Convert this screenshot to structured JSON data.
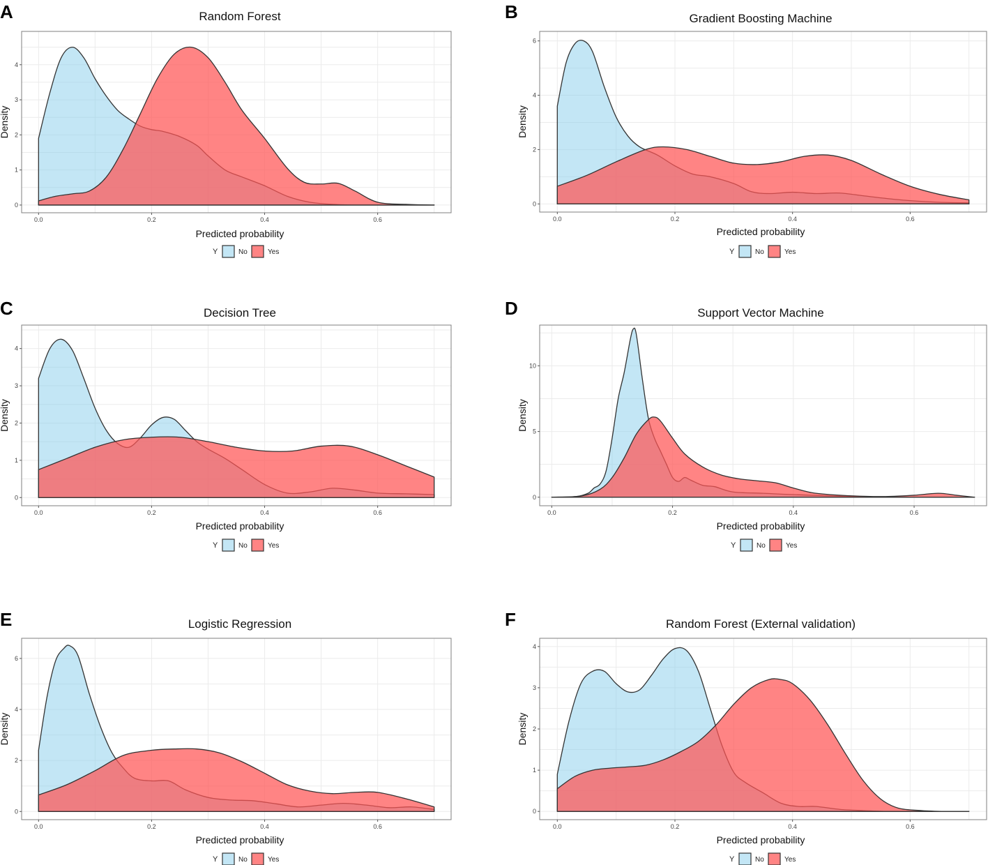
{
  "chart_data": [
    {
      "type": "area",
      "panel_label": "A",
      "title": "Random Forest",
      "xlabel": "Predicted probability",
      "ylabel": "Density",
      "xlim": [
        -0.03,
        0.73
      ],
      "ylim": [
        -0.22,
        4.95
      ],
      "xticks": [
        0.0,
        0.2,
        0.4,
        0.6
      ],
      "xtick_labels": [
        "0.0",
        "0.2",
        "0.4",
        "0.6"
      ],
      "yticks": [
        0,
        1,
        2,
        3,
        4
      ],
      "ytick_labels": [
        "0",
        "1",
        "2",
        "3",
        "4"
      ],
      "legend": {
        "title": "Y",
        "position": "bottom",
        "entries": [
          "No",
          "Yes"
        ]
      },
      "series": [
        {
          "name": "No",
          "color": "#87CEEB",
          "x": [
            0.0,
            0.02,
            0.04,
            0.06,
            0.08,
            0.1,
            0.12,
            0.14,
            0.16,
            0.18,
            0.2,
            0.22,
            0.25,
            0.28,
            0.3,
            0.33,
            0.36,
            0.4,
            0.44,
            0.48,
            0.52,
            0.56,
            0.6,
            0.65,
            0.7
          ],
          "y": [
            1.9,
            3.2,
            4.2,
            4.5,
            4.2,
            3.6,
            3.1,
            2.7,
            2.45,
            2.25,
            2.15,
            2.1,
            1.95,
            1.7,
            1.4,
            1.0,
            0.8,
            0.55,
            0.25,
            0.08,
            0.02,
            0.0,
            0.0,
            0.0,
            0.0
          ]
        },
        {
          "name": "Yes",
          "color": "#FF5555",
          "x": [
            0.0,
            0.03,
            0.06,
            0.09,
            0.12,
            0.15,
            0.18,
            0.21,
            0.24,
            0.27,
            0.3,
            0.33,
            0.36,
            0.4,
            0.44,
            0.47,
            0.5,
            0.53,
            0.56,
            0.6,
            0.65,
            0.7
          ],
          "y": [
            0.12,
            0.25,
            0.32,
            0.4,
            0.8,
            1.6,
            2.6,
            3.6,
            4.3,
            4.5,
            4.2,
            3.5,
            2.7,
            1.9,
            1.05,
            0.65,
            0.6,
            0.62,
            0.4,
            0.08,
            0.02,
            0.0
          ]
        }
      ]
    },
    {
      "type": "area",
      "panel_label": "B",
      "title": "Gradient Boosting Machine",
      "xlabel": "Predicted probability",
      "ylabel": "Density",
      "xlim": [
        -0.03,
        0.73
      ],
      "ylim": [
        -0.3,
        6.35
      ],
      "xticks": [
        0.0,
        0.2,
        0.4,
        0.6
      ],
      "xtick_labels": [
        "0.0",
        "0.2",
        "0.4",
        "0.6"
      ],
      "yticks": [
        0,
        2,
        4,
        6
      ],
      "ytick_labels": [
        "0",
        "2",
        "4",
        "6"
      ],
      "legend": {
        "title": "Y",
        "position": "bottom",
        "entries": [
          "No",
          "Yes"
        ]
      },
      "series": [
        {
          "name": "No",
          "color": "#87CEEB",
          "x": [
            0.0,
            0.015,
            0.03,
            0.045,
            0.06,
            0.08,
            0.1,
            0.12,
            0.14,
            0.17,
            0.2,
            0.23,
            0.26,
            0.3,
            0.33,
            0.36,
            0.4,
            0.44,
            0.48,
            0.52,
            0.56,
            0.6,
            0.65,
            0.7
          ],
          "y": [
            3.6,
            5.2,
            5.9,
            6.0,
            5.6,
            4.3,
            3.2,
            2.5,
            2.1,
            1.8,
            1.4,
            1.1,
            1.0,
            0.75,
            0.45,
            0.38,
            0.43,
            0.38,
            0.4,
            0.3,
            0.2,
            0.12,
            0.06,
            0.04
          ]
        },
        {
          "name": "Yes",
          "color": "#FF5555",
          "x": [
            0.0,
            0.05,
            0.1,
            0.15,
            0.18,
            0.22,
            0.26,
            0.3,
            0.34,
            0.38,
            0.42,
            0.46,
            0.5,
            0.55,
            0.6,
            0.65,
            0.7
          ],
          "y": [
            0.65,
            1.05,
            1.55,
            2.0,
            2.1,
            2.0,
            1.75,
            1.5,
            1.45,
            1.55,
            1.75,
            1.8,
            1.6,
            1.1,
            0.65,
            0.35,
            0.15
          ]
        }
      ]
    },
    {
      "type": "area",
      "panel_label": "C",
      "title": "Decision Tree",
      "xlabel": "Predicted probability",
      "ylabel": "Density",
      "xlim": [
        -0.03,
        0.73
      ],
      "ylim": [
        -0.22,
        4.63
      ],
      "xticks": [
        0.0,
        0.2,
        0.4,
        0.6
      ],
      "xtick_labels": [
        "0.0",
        "0.2",
        "0.4",
        "0.6"
      ],
      "yticks": [
        0,
        1,
        2,
        3,
        4
      ],
      "ytick_labels": [
        "0",
        "1",
        "2",
        "3",
        "4"
      ],
      "legend": {
        "title": "Y",
        "position": "bottom",
        "entries": [
          "No",
          "Yes"
        ]
      },
      "series": [
        {
          "name": "No",
          "color": "#87CEEB",
          "x": [
            0.0,
            0.02,
            0.04,
            0.06,
            0.08,
            0.1,
            0.12,
            0.14,
            0.16,
            0.18,
            0.2,
            0.22,
            0.24,
            0.26,
            0.28,
            0.3,
            0.33,
            0.36,
            0.4,
            0.44,
            0.48,
            0.52,
            0.56,
            0.6,
            0.65,
            0.7
          ],
          "y": [
            3.2,
            4.0,
            4.25,
            3.95,
            3.2,
            2.4,
            1.8,
            1.45,
            1.35,
            1.6,
            1.95,
            2.15,
            2.1,
            1.8,
            1.5,
            1.3,
            1.05,
            0.75,
            0.35,
            0.12,
            0.15,
            0.25,
            0.2,
            0.12,
            0.1,
            0.08
          ]
        },
        {
          "name": "Yes",
          "color": "#FF5555",
          "x": [
            0.0,
            0.05,
            0.1,
            0.15,
            0.2,
            0.25,
            0.3,
            0.35,
            0.4,
            0.45,
            0.5,
            0.55,
            0.6,
            0.65,
            0.7
          ],
          "y": [
            0.75,
            1.05,
            1.35,
            1.55,
            1.62,
            1.62,
            1.5,
            1.35,
            1.25,
            1.25,
            1.38,
            1.38,
            1.15,
            0.85,
            0.55
          ]
        }
      ]
    },
    {
      "type": "area",
      "panel_label": "D",
      "title": "Support Vector Machine",
      "xlabel": "Predicted probability",
      "ylabel": "Density",
      "xlim": [
        -0.02,
        0.72
      ],
      "ylim": [
        -0.65,
        13.1
      ],
      "xticks": [
        0.0,
        0.2,
        0.4,
        0.6
      ],
      "xtick_labels": [
        "0.0",
        "0.2",
        "0.4",
        "0.6"
      ],
      "yticks": [
        0,
        5,
        10
      ],
      "ytick_labels": [
        "0",
        "5",
        "10"
      ],
      "legend": {
        "title": "Y",
        "position": "bottom",
        "entries": [
          "No",
          "Yes"
        ]
      },
      "series": [
        {
          "name": "No",
          "color": "#87CEEB",
          "x": [
            0.0,
            0.04,
            0.06,
            0.07,
            0.08,
            0.09,
            0.1,
            0.11,
            0.12,
            0.13,
            0.135,
            0.14,
            0.15,
            0.16,
            0.17,
            0.18,
            0.19,
            0.2,
            0.21,
            0.22,
            0.23,
            0.25,
            0.27,
            0.3,
            0.35,
            0.4,
            0.5,
            0.6,
            0.7
          ],
          "y": [
            0.0,
            0.05,
            0.3,
            0.7,
            1.0,
            2.0,
            4.5,
            7.5,
            9.5,
            12.0,
            12.8,
            12.4,
            9.0,
            6.0,
            4.5,
            3.5,
            2.5,
            1.5,
            1.2,
            1.5,
            1.3,
            0.9,
            0.8,
            0.4,
            0.3,
            0.2,
            0.05,
            0.0,
            0.0
          ]
        },
        {
          "name": "Yes",
          "color": "#FF5555",
          "x": [
            0.0,
            0.05,
            0.08,
            0.1,
            0.12,
            0.14,
            0.16,
            0.17,
            0.18,
            0.2,
            0.22,
            0.25,
            0.28,
            0.31,
            0.34,
            0.37,
            0.4,
            0.43,
            0.46,
            0.5,
            0.55,
            0.6,
            0.64,
            0.67,
            0.7
          ],
          "y": [
            0.0,
            0.1,
            0.6,
            1.5,
            3.0,
            4.8,
            5.9,
            6.1,
            5.8,
            4.5,
            3.3,
            2.3,
            1.7,
            1.4,
            1.25,
            1.1,
            0.7,
            0.35,
            0.2,
            0.1,
            0.05,
            0.15,
            0.3,
            0.15,
            0.0
          ]
        }
      ]
    },
    {
      "type": "area",
      "panel_label": "E",
      "title": "Logistic Regression",
      "xlabel": "Predicted probability",
      "ylabel": "Density",
      "xlim": [
        -0.03,
        0.73
      ],
      "ylim": [
        -0.32,
        6.79
      ],
      "xticks": [
        0.0,
        0.2,
        0.4,
        0.6
      ],
      "xtick_labels": [
        "0.0",
        "0.2",
        "0.4",
        "0.6"
      ],
      "yticks": [
        0,
        2,
        4,
        6
      ],
      "ytick_labels": [
        "0",
        "2",
        "4",
        "6"
      ],
      "legend": {
        "title": "Y",
        "position": "bottom",
        "entries": [
          "No",
          "Yes"
        ]
      },
      "series": [
        {
          "name": "No",
          "color": "#87CEEB",
          "x": [
            0.0,
            0.015,
            0.03,
            0.045,
            0.055,
            0.07,
            0.09,
            0.11,
            0.13,
            0.15,
            0.17,
            0.2,
            0.23,
            0.26,
            0.3,
            0.34,
            0.38,
            0.42,
            0.46,
            0.5,
            0.54,
            0.58,
            0.62,
            0.66,
            0.7
          ],
          "y": [
            2.4,
            4.5,
            5.9,
            6.4,
            6.5,
            6.1,
            4.6,
            3.3,
            2.3,
            1.7,
            1.3,
            1.2,
            1.2,
            0.85,
            0.55,
            0.45,
            0.42,
            0.3,
            0.18,
            0.25,
            0.32,
            0.25,
            0.15,
            0.18,
            0.08
          ]
        },
        {
          "name": "Yes",
          "color": "#FF5555",
          "x": [
            0.0,
            0.05,
            0.1,
            0.15,
            0.2,
            0.24,
            0.28,
            0.32,
            0.36,
            0.4,
            0.44,
            0.48,
            0.52,
            0.56,
            0.6,
            0.65,
            0.7
          ],
          "y": [
            0.65,
            1.05,
            1.6,
            2.2,
            2.4,
            2.45,
            2.45,
            2.3,
            1.95,
            1.5,
            1.05,
            0.8,
            0.7,
            0.75,
            0.75,
            0.5,
            0.18
          ]
        }
      ]
    },
    {
      "type": "area",
      "panel_label": "F",
      "title": "Random Forest (External validation)",
      "xlabel": "Predicted probability",
      "ylabel": "Density",
      "xlim": [
        -0.03,
        0.73
      ],
      "ylim": [
        -0.2,
        4.2
      ],
      "xticks": [
        0.0,
        0.2,
        0.4,
        0.6
      ],
      "xtick_labels": [
        "0.0",
        "0.2",
        "0.4",
        "0.6"
      ],
      "yticks": [
        0,
        1,
        2,
        3,
        4
      ],
      "ytick_labels": [
        "0",
        "1",
        "2",
        "3",
        "4"
      ],
      "legend": {
        "title": "Y",
        "position": "bottom",
        "entries": [
          "No",
          "Yes"
        ]
      },
      "series": [
        {
          "name": "No",
          "color": "#87CEEB",
          "x": [
            0.0,
            0.02,
            0.04,
            0.06,
            0.08,
            0.1,
            0.12,
            0.14,
            0.16,
            0.18,
            0.2,
            0.22,
            0.24,
            0.26,
            0.28,
            0.3,
            0.32,
            0.35,
            0.38,
            0.41,
            0.44,
            0.48,
            0.52,
            0.56,
            0.6,
            0.65,
            0.7
          ],
          "y": [
            0.9,
            2.2,
            3.1,
            3.4,
            3.4,
            3.1,
            2.9,
            2.95,
            3.3,
            3.7,
            3.95,
            3.9,
            3.4,
            2.5,
            1.6,
            0.95,
            0.7,
            0.45,
            0.2,
            0.12,
            0.12,
            0.05,
            0.02,
            0.0,
            0.0,
            0.0,
            0.0
          ]
        },
        {
          "name": "Yes",
          "color": "#FF5555",
          "x": [
            0.0,
            0.03,
            0.06,
            0.09,
            0.12,
            0.15,
            0.18,
            0.21,
            0.24,
            0.27,
            0.3,
            0.33,
            0.36,
            0.38,
            0.4,
            0.43,
            0.46,
            0.49,
            0.52,
            0.55,
            0.58,
            0.62,
            0.66,
            0.7
          ],
          "y": [
            0.55,
            0.85,
            1.0,
            1.05,
            1.08,
            1.12,
            1.25,
            1.45,
            1.7,
            2.1,
            2.6,
            3.0,
            3.2,
            3.2,
            3.1,
            2.7,
            2.1,
            1.4,
            0.75,
            0.3,
            0.08,
            0.02,
            0.0,
            0.0
          ]
        }
      ]
    }
  ]
}
